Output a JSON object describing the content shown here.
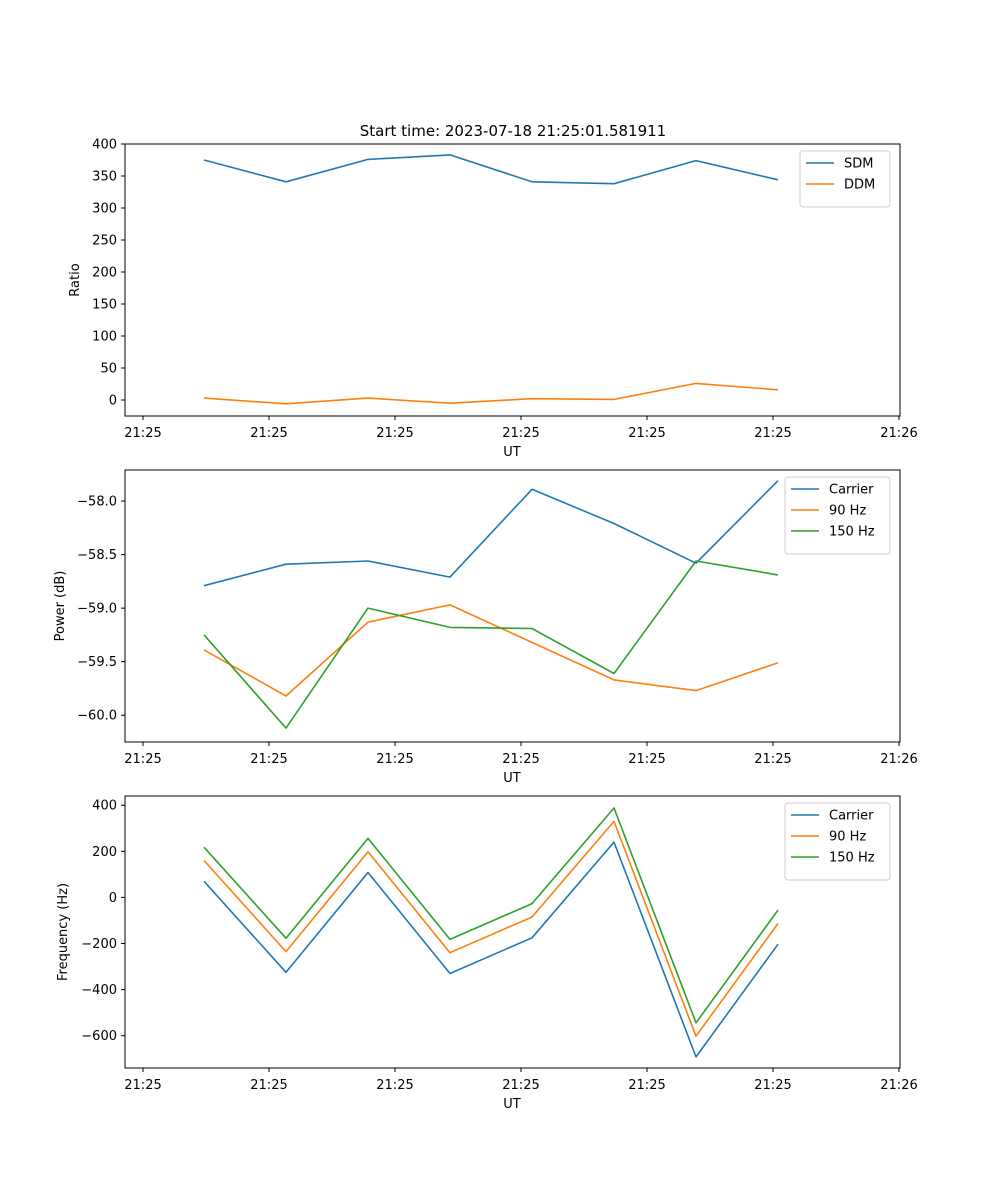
{
  "figure": {
    "title": "Start time: 2023-07-18 21:25:01.581911"
  },
  "chart_data": [
    {
      "type": "line",
      "ylabel": "Ratio",
      "xlabel": "UT",
      "xticks": [
        "21:25",
        "21:25",
        "21:25",
        "21:25",
        "21:25",
        "21:25",
        "21:26"
      ],
      "ylim": [
        -25,
        400
      ],
      "yticks": [
        0,
        50,
        100,
        150,
        200,
        250,
        300,
        350,
        400
      ],
      "legend": "top-right",
      "x": [
        1,
        2,
        3,
        4,
        5,
        6,
        7,
        8
      ],
      "series": [
        {
          "name": "SDM",
          "color": "#1f77b4",
          "values": [
            375,
            341,
            376,
            383,
            341,
            338,
            374,
            344
          ]
        },
        {
          "name": "DDM",
          "color": "#ff7f0e",
          "values": [
            3,
            -6,
            3,
            -5,
            2,
            1,
            26,
            16
          ]
        }
      ]
    },
    {
      "type": "line",
      "ylabel": "Power (dB)",
      "xlabel": "UT",
      "xticks": [
        "21:25",
        "21:25",
        "21:25",
        "21:25",
        "21:25",
        "21:25",
        "21:26"
      ],
      "ylim": [
        -60.25,
        -57.71
      ],
      "yticks": [
        -60.0,
        -59.5,
        -59.0,
        -58.5,
        -58.0
      ],
      "legend": "top-right",
      "x": [
        1,
        2,
        3,
        4,
        5,
        6,
        7,
        8
      ],
      "series": [
        {
          "name": "Carrier",
          "color": "#1f77b4",
          "values": [
            -58.79,
            -58.59,
            -58.56,
            -58.71,
            -57.89,
            -58.21,
            -58.58,
            -57.81
          ]
        },
        {
          "name": "90 Hz",
          "color": "#ff7f0e",
          "values": [
            -59.39,
            -59.82,
            -59.13,
            -58.97,
            -59.32,
            -59.67,
            -59.77,
            -59.51
          ]
        },
        {
          "name": "150 Hz",
          "color": "#2ca02c",
          "values": [
            -59.25,
            -60.12,
            -59.0,
            -59.18,
            -59.19,
            -59.61,
            -58.56,
            -58.69
          ]
        }
      ]
    },
    {
      "type": "line",
      "ylabel": "Frequency (Hz)",
      "xlabel": "UT",
      "xticks": [
        "21:25",
        "21:25",
        "21:25",
        "21:25",
        "21:25",
        "21:25",
        "21:26"
      ],
      "ylim": [
        -740,
        440
      ],
      "yticks": [
        -600,
        -400,
        -200,
        0,
        200,
        400
      ],
      "legend": "top-right",
      "x": [
        1,
        2,
        3,
        4,
        5,
        6,
        7,
        8
      ],
      "series": [
        {
          "name": "Carrier",
          "color": "#1f77b4",
          "values": [
            70,
            -325,
            108,
            -330,
            -175,
            240,
            -692,
            -203
          ]
        },
        {
          "name": "90 Hz",
          "color": "#ff7f0e",
          "values": [
            160,
            -235,
            198,
            -240,
            -85,
            330,
            -602,
            -113
          ]
        },
        {
          "name": "150 Hz",
          "color": "#2ca02c",
          "values": [
            218,
            -177,
            256,
            -182,
            -27,
            388,
            -544,
            -55
          ]
        }
      ]
    }
  ]
}
